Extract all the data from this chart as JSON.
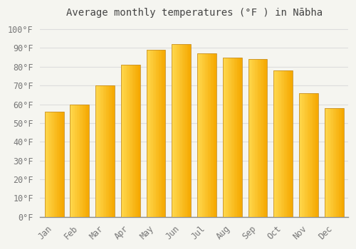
{
  "title": "Average monthly temperatures (°F ) in Nābha",
  "months": [
    "Jan",
    "Feb",
    "Mar",
    "Apr",
    "May",
    "Jun",
    "Jul",
    "Aug",
    "Sep",
    "Oct",
    "Nov",
    "Dec"
  ],
  "values": [
    56,
    60,
    70,
    81,
    89,
    92,
    87,
    85,
    84,
    78,
    66,
    58
  ],
  "bar_color_left": "#FFD84D",
  "bar_color_right": "#F5A800",
  "bar_edge_color": "#C8922A",
  "background_color": "#F5F5F0",
  "plot_bg_color": "#F5F5F0",
  "grid_color": "#DDDDDD",
  "ytick_labels": [
    "0°F",
    "10°F",
    "20°F",
    "30°F",
    "40°F",
    "50°F",
    "60°F",
    "70°F",
    "80°F",
    "90°F",
    "100°F"
  ],
  "ytick_values": [
    0,
    10,
    20,
    30,
    40,
    50,
    60,
    70,
    80,
    90,
    100
  ],
  "ylim": [
    0,
    104
  ],
  "title_fontsize": 10,
  "tick_fontsize": 8.5,
  "title_color": "#444444",
  "tick_color": "#777777",
  "bar_width": 0.75,
  "n_gradient_strips": 20
}
